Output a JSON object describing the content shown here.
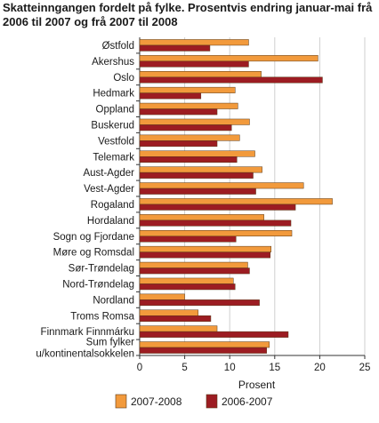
{
  "chart_data": {
    "type": "bar",
    "orientation": "horizontal",
    "title": "Skatteinngangen fordelt på fylke. Prosentvis endring januar-mai frå 2006 til 2007 og frå 2007 til 2008",
    "xlabel": "Prosent",
    "xlim": [
      0,
      25
    ],
    "xticks": [
      "0",
      "5",
      "10",
      "15",
      "20",
      "25"
    ],
    "grid": "vertical",
    "legend_position": "bottom",
    "categories": [
      [
        "Østfold"
      ],
      [
        "Akershus"
      ],
      [
        "Oslo"
      ],
      [
        "Hedmark"
      ],
      [
        "Oppland"
      ],
      [
        "Buskerud"
      ],
      [
        "Vestfold"
      ],
      [
        "Telemark"
      ],
      [
        "Aust-Agder"
      ],
      [
        "Vest-Agder"
      ],
      [
        "Rogaland"
      ],
      [
        "Hordaland"
      ],
      [
        "Sogn og Fjordane"
      ],
      [
        "Møre og Romsdal"
      ],
      [
        "Sør-Trøndelag"
      ],
      [
        "Nord-Trøndelag"
      ],
      [
        "Nordland"
      ],
      [
        "Troms Romsa"
      ],
      [
        "Finnmark Finnmárku"
      ],
      [
        "Sum fylker",
        "u/kontinentalsokkelen"
      ]
    ],
    "series": [
      {
        "name": "2007-2008",
        "color": "#f29a3c",
        "values": [
          12.1,
          19.8,
          13.5,
          10.6,
          10.9,
          12.2,
          11.1,
          12.8,
          13.6,
          18.2,
          21.4,
          13.8,
          16.9,
          14.6,
          12.0,
          10.4,
          5.0,
          6.5,
          8.6,
          14.4
        ]
      },
      {
        "name": "2006-2007",
        "color": "#9c1c22",
        "values": [
          7.8,
          12.1,
          20.3,
          6.8,
          8.6,
          10.2,
          8.6,
          10.8,
          12.6,
          12.9,
          17.3,
          16.8,
          10.7,
          14.5,
          12.2,
          10.6,
          13.3,
          7.9,
          16.5,
          14.1
        ]
      }
    ]
  }
}
